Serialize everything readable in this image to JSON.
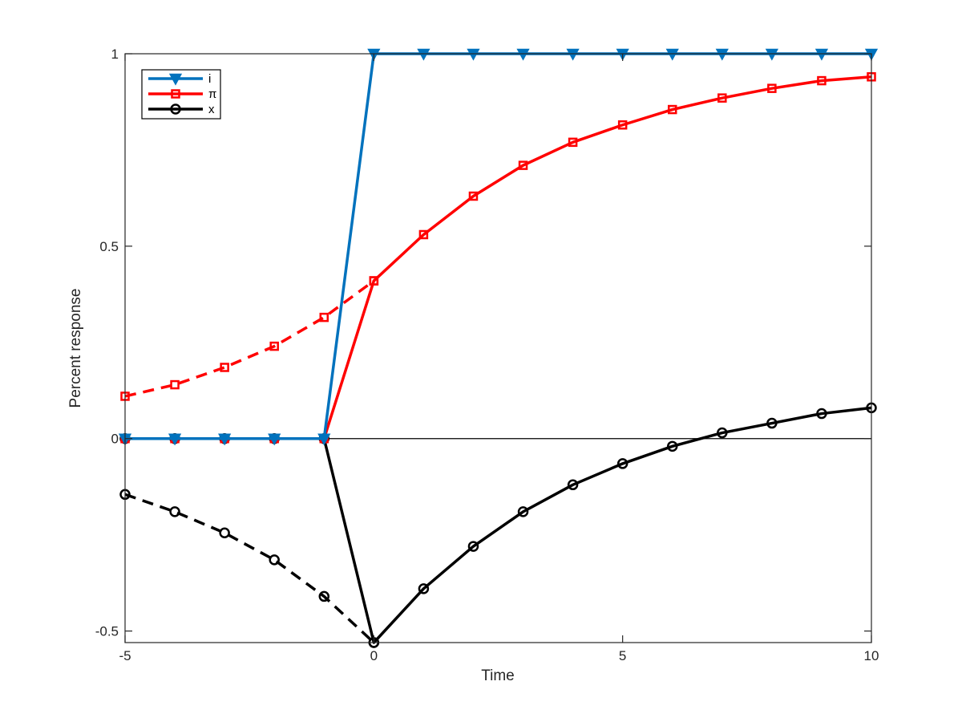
{
  "chart_data": {
    "type": "line",
    "title": "",
    "xlabel": "Time",
    "ylabel": "Percent response",
    "xlim": [
      -5,
      10
    ],
    "ylim": [
      -0.53,
      1
    ],
    "xticks": [
      -5,
      0,
      5,
      10
    ],
    "xtick_labels": [
      "-5",
      "0",
      "5",
      "10"
    ],
    "yticks": [
      -0.5,
      0,
      0.5,
      1
    ],
    "ytick_labels": [
      "-0.5",
      "0",
      "0.5",
      "1"
    ],
    "grid": false,
    "legend_position": "top-left",
    "zero_line": true,
    "series": [
      {
        "name": "i",
        "color": "#0072bd",
        "marker": "triangle-down",
        "line_style": "solid",
        "x": [
          -5,
          -4,
          -3,
          -2,
          -1,
          0,
          1,
          2,
          3,
          4,
          5,
          6,
          7,
          8,
          9,
          10
        ],
        "y": [
          0,
          0,
          0,
          0,
          0,
          1,
          1,
          1,
          1,
          1,
          1,
          1,
          1,
          1,
          1,
          1
        ]
      },
      {
        "name": "π",
        "color": "#ff0000",
        "marker": "square",
        "line_style": "solid",
        "x": [
          -5,
          -4,
          -3,
          -2,
          -1,
          0,
          1,
          2,
          3,
          4,
          5,
          6,
          7,
          8,
          9,
          10
        ],
        "y": [
          0,
          0,
          0,
          0,
          0,
          0.41,
          0.53,
          0.63,
          0.71,
          0.77,
          0.815,
          0.855,
          0.885,
          0.91,
          0.93,
          0.94
        ]
      },
      {
        "name": "x",
        "color": "#000000",
        "marker": "circle",
        "line_style": "solid",
        "x": [
          -5,
          -4,
          -3,
          -2,
          -1,
          0,
          1,
          2,
          3,
          4,
          5,
          6,
          7,
          8,
          9,
          10
        ],
        "y": [
          0,
          0,
          0,
          0,
          0,
          -0.53,
          -0.39,
          -0.28,
          -0.19,
          -0.12,
          -0.065,
          -0.02,
          0.015,
          0.04,
          0.065,
          0.08
        ]
      },
      {
        "name": "",
        "color": "#ff0000",
        "marker": "square",
        "line_style": "dashed",
        "x": [
          -5,
          -4,
          -3,
          -2,
          -1,
          0
        ],
        "y": [
          0.11,
          0.14,
          0.185,
          0.24,
          0.315,
          0.41
        ]
      },
      {
        "name": "",
        "color": "#000000",
        "marker": "circle",
        "line_style": "dashed",
        "x": [
          -5,
          -4,
          -3,
          -2,
          -1,
          0
        ],
        "y": [
          -0.145,
          -0.19,
          -0.245,
          -0.315,
          -0.41,
          -0.53
        ]
      }
    ]
  }
}
